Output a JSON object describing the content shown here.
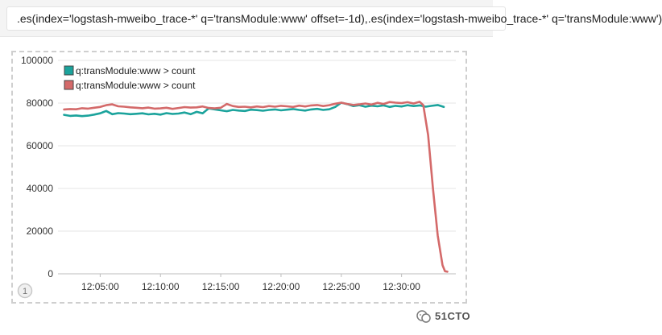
{
  "query": {
    "text": ".es(index='logstash-mweibo_trace-*' q='transModule:www' offset=-1d),.es(index='logstash-mweibo_trace-*' q='transModule:www')"
  },
  "panel": {
    "badge": "1"
  },
  "watermark": {
    "text": "51CTO"
  },
  "colors": {
    "series_teal": "#1ba39c",
    "series_red": "#d46a6a",
    "grid": "#e4e4e4",
    "axis_text": "#333333"
  },
  "chart_data": {
    "type": "line",
    "title": "",
    "xlabel": "",
    "ylabel": "",
    "x_ticks": [
      "12:05:00",
      "12:10:00",
      "12:15:00",
      "12:20:00",
      "12:25:00",
      "12:30:00"
    ],
    "x_tick_minutes": [
      5,
      10,
      15,
      20,
      25,
      30
    ],
    "xlim_minutes": [
      1.5,
      34.5
    ],
    "y_ticks": [
      "0",
      "20000",
      "40000",
      "60000",
      "80000",
      "100000"
    ],
    "y_tick_values": [
      0,
      20000,
      40000,
      60000,
      80000,
      100000
    ],
    "ylim": [
      0,
      100000
    ],
    "grid": "horizontal",
    "legend_position": "top-left",
    "series": [
      {
        "name": "q:transModule:www > count",
        "color": "#1ba39c",
        "x": [
          2,
          2.5,
          3,
          3.5,
          4,
          4.5,
          5,
          5.5,
          6,
          6.5,
          7,
          7.5,
          8,
          8.5,
          9,
          9.5,
          10,
          10.5,
          11,
          11.5,
          12,
          12.5,
          13,
          13.5,
          14,
          14.5,
          15,
          15.5,
          16,
          16.5,
          17,
          17.5,
          18,
          18.5,
          19,
          19.5,
          20,
          20.5,
          21,
          21.5,
          22,
          22.5,
          23,
          23.5,
          24,
          24.5,
          25,
          25.5,
          26,
          26.5,
          27,
          27.5,
          28,
          28.5,
          29,
          29.5,
          30,
          30.5,
          31,
          31.5,
          32,
          32.5,
          33,
          33.5
        ],
        "y": [
          74500,
          74000,
          74200,
          73900,
          74100,
          74600,
          75200,
          76300,
          74800,
          75300,
          75100,
          74800,
          75000,
          75200,
          74700,
          75000,
          74600,
          75300,
          74900,
          75100,
          75600,
          74800,
          75900,
          75200,
          77500,
          77000,
          76600,
          76200,
          76800,
          76500,
          76300,
          76900,
          76700,
          76400,
          76800,
          77000,
          76600,
          76900,
          77200,
          76800,
          76500,
          77000,
          77300,
          76800,
          77100,
          78200,
          80200,
          79500,
          78600,
          79000,
          78300,
          78800,
          78500,
          78900,
          78200,
          78700,
          78400,
          79000,
          78600,
          78900,
          78300,
          78700,
          79100,
          78200
        ]
      },
      {
        "name": "q:transModule:www > count",
        "color": "#d46a6a",
        "x": [
          2,
          2.5,
          3,
          3.5,
          4,
          4.5,
          5,
          5.5,
          6,
          6.5,
          7,
          7.5,
          8,
          8.5,
          9,
          9.5,
          10,
          10.5,
          11,
          11.5,
          12,
          12.5,
          13,
          13.5,
          14,
          14.5,
          15,
          15.5,
          16,
          16.5,
          17,
          17.5,
          18,
          18.5,
          19,
          19.5,
          20,
          20.5,
          21,
          21.5,
          22,
          22.5,
          23,
          23.5,
          24,
          24.5,
          25,
          25.5,
          26,
          26.5,
          27,
          27.5,
          28,
          28.5,
          29,
          29.5,
          30,
          30.5,
          31,
          31.5,
          31.8,
          32.2,
          32.6,
          33.0,
          33.4,
          33.6,
          33.8
        ],
        "y": [
          77000,
          77200,
          77100,
          77600,
          77400,
          77800,
          78200,
          79000,
          79400,
          78500,
          78300,
          78000,
          77800,
          77600,
          77900,
          77400,
          77500,
          77800,
          77300,
          77700,
          78100,
          77900,
          78000,
          78400,
          77700,
          77500,
          77800,
          79600,
          78600,
          78200,
          78300,
          78000,
          78400,
          78100,
          78600,
          78300,
          78700,
          78500,
          78200,
          78800,
          78400,
          78900,
          79100,
          78600,
          79000,
          79700,
          80200,
          79600,
          79100,
          79400,
          79800,
          79300,
          80100,
          79600,
          80500,
          80200,
          80000,
          80400,
          79800,
          80600,
          79000,
          65000,
          40000,
          18000,
          4000,
          1200,
          1000
        ]
      }
    ]
  }
}
